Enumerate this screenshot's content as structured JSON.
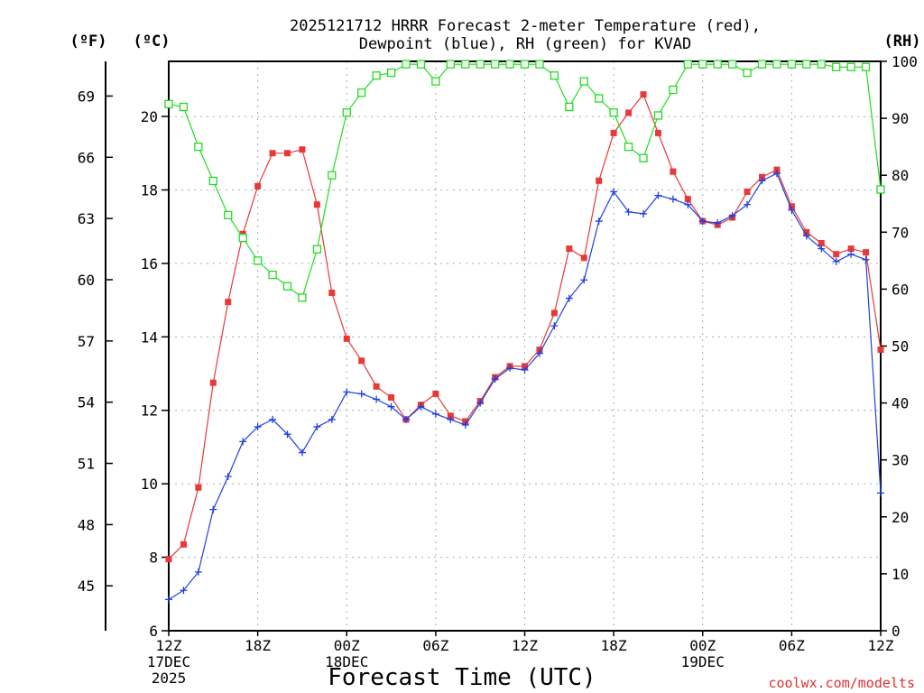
{
  "chart_data": {
    "type": "line",
    "title": [
      "2025121712 HRRR Forecast 2-meter Temperature (red),",
      "Dewpoint (blue), RH (green) for KVAD"
    ],
    "xlabel": "Forecast Time (UTC)",
    "credit": "coolwx.com/modelts",
    "units": {
      "left_f": "(ºF)",
      "left_c": "(ºC)",
      "right": "(RH)"
    },
    "x": [
      0,
      1,
      2,
      3,
      4,
      5,
      6,
      7,
      8,
      9,
      10,
      11,
      12,
      13,
      14,
      15,
      16,
      17,
      18,
      19,
      20,
      21,
      22,
      23,
      24,
      25,
      26,
      27,
      28,
      29,
      30,
      31,
      32,
      33,
      34,
      35,
      36,
      37,
      38,
      39,
      40,
      41,
      42,
      43,
      44,
      45,
      46,
      47,
      48
    ],
    "xlim": [
      0,
      48
    ],
    "ylim_c": [
      6,
      21.5
    ],
    "ylim_rh": [
      0,
      100
    ],
    "yticks_c": [
      6,
      8,
      10,
      12,
      14,
      16,
      18,
      20
    ],
    "yticks_f": [
      45,
      48,
      51,
      54,
      57,
      60,
      63,
      66,
      69
    ],
    "yticks_rh": [
      0,
      10,
      20,
      30,
      40,
      50,
      60,
      70,
      80,
      90,
      100
    ],
    "xticks": [
      {
        "x": 0,
        "lines": [
          "12Z",
          "17DEC",
          "2025"
        ]
      },
      {
        "x": 6,
        "lines": [
          "18Z"
        ]
      },
      {
        "x": 12,
        "lines": [
          "00Z",
          "18DEC"
        ]
      },
      {
        "x": 18,
        "lines": [
          "06Z"
        ]
      },
      {
        "x": 24,
        "lines": [
          "12Z"
        ]
      },
      {
        "x": 30,
        "lines": [
          "18Z"
        ]
      },
      {
        "x": 36,
        "lines": [
          "00Z",
          "19DEC"
        ]
      },
      {
        "x": 42,
        "lines": [
          "06Z"
        ]
      },
      {
        "x": 48,
        "lines": [
          "12Z"
        ]
      }
    ],
    "series": [
      {
        "name": "Temperature",
        "axis": "celsius",
        "marker": "filled-square",
        "color": "#e83838",
        "values": [
          7.95,
          8.35,
          9.9,
          12.75,
          14.95,
          16.8,
          18.1,
          19.0,
          19.0,
          19.1,
          17.6,
          15.2,
          13.95,
          13.35,
          12.65,
          12.35,
          11.75,
          12.15,
          12.45,
          11.85,
          11.7,
          12.25,
          12.9,
          13.2,
          13.2,
          13.65,
          14.65,
          16.4,
          16.15,
          18.25,
          19.55,
          20.1,
          20.6,
          19.55,
          18.5,
          17.75,
          17.15,
          17.05,
          17.25,
          17.95,
          18.35,
          18.55,
          17.55,
          16.85,
          16.55,
          16.25,
          16.4,
          16.3,
          13.65
        ]
      },
      {
        "name": "Dewpoint",
        "axis": "celsius",
        "marker": "plus",
        "color": "#2040e0",
        "values": [
          6.85,
          7.1,
          7.6,
          9.3,
          10.2,
          11.15,
          11.55,
          11.75,
          11.35,
          10.85,
          11.55,
          11.75,
          12.5,
          12.45,
          12.3,
          12.1,
          11.75,
          12.1,
          11.9,
          11.75,
          11.6,
          12.2,
          12.85,
          13.15,
          13.1,
          13.55,
          14.3,
          15.05,
          15.55,
          17.15,
          17.95,
          17.4,
          17.35,
          17.85,
          17.75,
          17.6,
          17.15,
          17.1,
          17.3,
          17.6,
          18.25,
          18.45,
          17.45,
          16.75,
          16.4,
          16.05,
          16.25,
          16.1,
          9.75
        ]
      },
      {
        "name": "RH",
        "axis": "rh",
        "marker": "open-square",
        "color": "#20dd20",
        "values": [
          92.5,
          92,
          85,
          79,
          73,
          69,
          65,
          62.5,
          60.5,
          58.5,
          67,
          80,
          91,
          94.5,
          97.5,
          98,
          99.5,
          99.5,
          96.5,
          99.5,
          99.5,
          99.5,
          99.5,
          99.5,
          99.5,
          99.5,
          97.5,
          92,
          96.5,
          93.5,
          91,
          85,
          83,
          90.5,
          95,
          99.5,
          99.5,
          99.5,
          99.5,
          98,
          99.5,
          99.5,
          99.5,
          99.5,
          99.5,
          99,
          99,
          99,
          77.5
        ]
      }
    ]
  }
}
